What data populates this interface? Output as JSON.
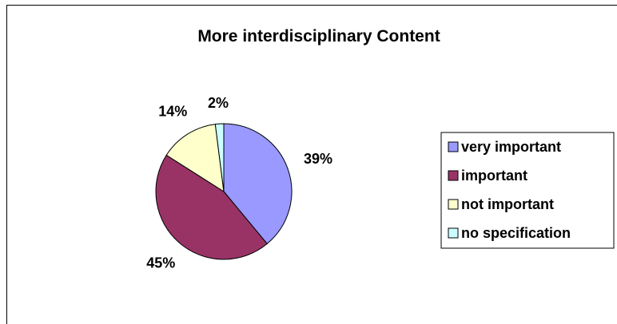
{
  "chart_data": {
    "type": "pie",
    "title": "More interdisciplinary Content",
    "categories": [
      "very important",
      "important",
      "not important",
      "no specification"
    ],
    "values": [
      39,
      45,
      14,
      2
    ],
    "labels": [
      "39%",
      "45%",
      "14%",
      "2%"
    ],
    "colors": [
      "#9999ff",
      "#993366",
      "#ffffcc",
      "#ccffff"
    ],
    "legend_position": "right"
  }
}
